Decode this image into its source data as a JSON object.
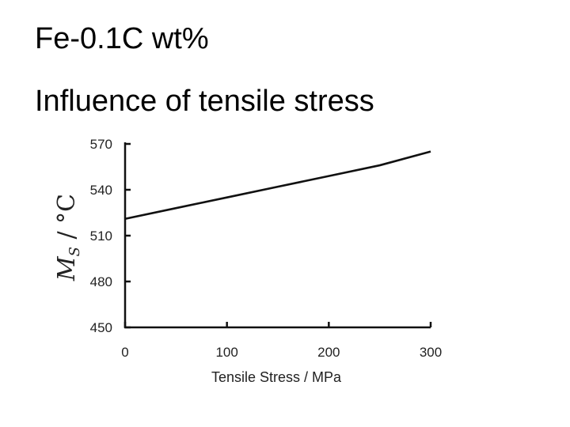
{
  "slide": {
    "title": "Fe-0.1C wt%",
    "subtitle": "Influence of tensile stress"
  },
  "chart_data": {
    "type": "line",
    "xlabel": "Tensile Stress / MPa",
    "ylabel_main": "M",
    "ylabel_sub": "S",
    "ylabel_unit": " / °C",
    "xlim": [
      0,
      300
    ],
    "ylim": [
      450,
      570
    ],
    "xticks": [
      0,
      100,
      200,
      300
    ],
    "yticks": [
      450,
      480,
      510,
      540,
      570
    ],
    "grid": false,
    "series": [
      {
        "x": [
          0,
          50,
          100,
          150,
          200,
          250,
          300
        ],
        "y": [
          521,
          528,
          535,
          542,
          549,
          556,
          565
        ]
      }
    ],
    "line_color": "#111111"
  }
}
